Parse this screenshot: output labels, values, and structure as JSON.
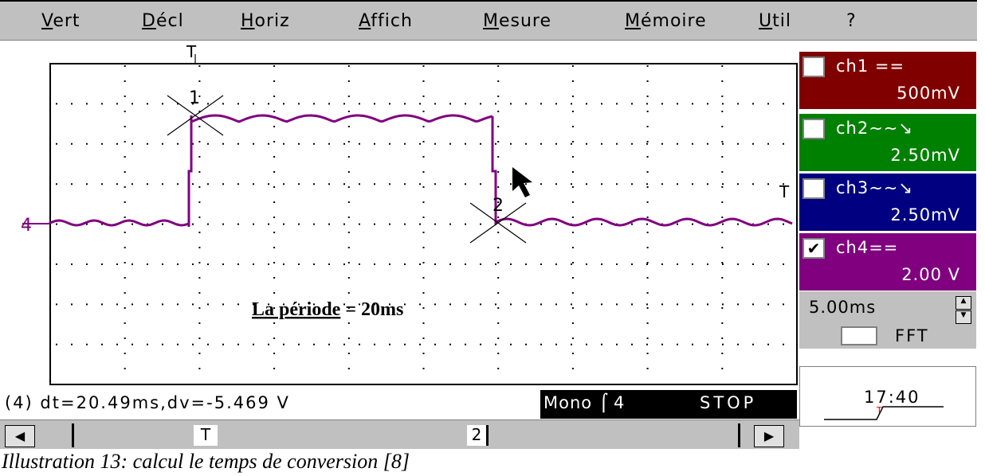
{
  "menu": [
    "Vert",
    "Décl",
    "Horiz",
    "Affich",
    "Mesure",
    "Mémoire",
    "Util",
    "?"
  ],
  "markers": {
    "trigger_top": "T",
    "trigger_right": "T",
    "cursor1": "1",
    "cursor2": "2",
    "channel": "4"
  },
  "annotation": {
    "underlined": "La période",
    "rest": "= 20ms"
  },
  "channels": [
    {
      "name": "ch1 ==",
      "scale": "500mV",
      "checked": false
    },
    {
      "name": "ch2∼∼↘",
      "scale": "2.50mV",
      "checked": false
    },
    {
      "name": "ch3∼∼↘",
      "scale": "2.50mV",
      "checked": false
    },
    {
      "name": "ch4==",
      "scale": "2.00 V",
      "checked": true
    }
  ],
  "timebase": "5.00ms",
  "fft": "FFT",
  "status": {
    "measure": "(4) dt=20.49ms,dv=-5.469 V",
    "mode": "Mono",
    "trigger_channel": "4",
    "state": "STOP"
  },
  "scrollbar": {
    "trigger": "T",
    "cursor": "2"
  },
  "clock": "17:40",
  "caption": "Illustration 13: calcul le temps de conversion [8]"
}
